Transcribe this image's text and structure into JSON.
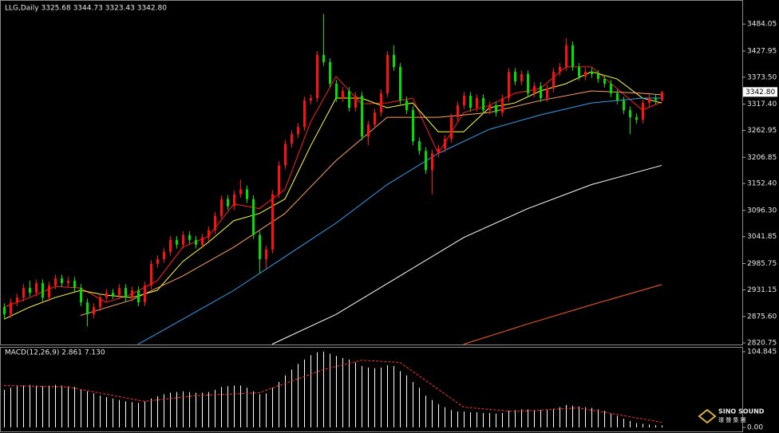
{
  "chart_data": [
    {
      "type": "candlestick",
      "title": "LLG,Daily  3325.68 3344.73 3323.43 3342.80",
      "up_color": "#ff1010",
      "down_color": "#00e000",
      "ylim": [
        2817.4,
        3532.5
      ],
      "yticks": [
        3484.05,
        3427.95,
        {
          "value": 3373.5,
          "label": "3373.50"
        },
        {
          "value": 3317.4,
          "label": "3317.40"
        },
        3262.95,
        3206.85,
        {
          "value": 3152.4,
          "label": "3152.40"
        },
        {
          "value": 3096.3,
          "label": "3096.30"
        },
        3041.85,
        2985.75,
        2931.15,
        {
          "value": 2875.6,
          "label": "2875.60"
        },
        2820.75
      ],
      "price_tag": {
        "value": 3342.8,
        "label": "3342.80"
      },
      "open": [
        2895,
        2880,
        2905,
        2915,
        2935,
        2925,
        2945,
        2915,
        2940,
        2955,
        2945,
        2950,
        2935,
        2905,
        2880,
        2895,
        2915,
        2925,
        2920,
        2935,
        2915,
        2930,
        2905,
        2940,
        2985,
        2995,
        3010,
        3035,
        3025,
        3045,
        3035,
        3025,
        3040,
        3055,
        3085,
        3120,
        3105,
        3130,
        3140,
        3120,
        3045,
        2995,
        3015,
        3130,
        3190,
        3235,
        3255,
        3270,
        3325,
        3330,
        3420,
        3405,
        3360,
        3330,
        3345,
        3310,
        3335,
        3250,
        3275,
        3300,
        3340,
        3420,
        3395,
        3325,
        3305,
        3240,
        3220,
        3180,
        3215,
        3225,
        3245,
        3290,
        3315,
        3335,
        3310,
        3330,
        3305,
        3315,
        3300,
        3330,
        3385,
        3365,
        3380,
        3340,
        3355,
        3330,
        3350,
        3385,
        3395,
        3440,
        3395,
        3375,
        3385,
        3380,
        3370,
        3360,
        3340,
        3325,
        3305,
        3290,
        3285,
        3320,
        3330,
        3325.68
      ],
      "high": [
        2903,
        2913,
        2923,
        2943,
        2950,
        2953,
        2953,
        2948,
        2963,
        2963,
        2958,
        2958,
        2943,
        2913,
        2903,
        2923,
        2933,
        2933,
        2943,
        2943,
        2938,
        2938,
        2948,
        2993,
        3003,
        3018,
        3043,
        3043,
        3053,
        3053,
        3043,
        3048,
        3063,
        3093,
        3128,
        3128,
        3138,
        3160,
        3148,
        3128,
        3053,
        3023,
        3138,
        3198,
        3243,
        3263,
        3278,
        3333,
        3338,
        3428,
        3505,
        3413,
        3368,
        3353,
        3353,
        3343,
        3343,
        3283,
        3308,
        3348,
        3428,
        3440,
        3403,
        3333,
        3313,
        3248,
        3228,
        3223,
        3233,
        3253,
        3298,
        3323,
        3343,
        3343,
        3338,
        3338,
        3323,
        3323,
        3338,
        3393,
        3393,
        3388,
        3388,
        3363,
        3363,
        3358,
        3393,
        3403,
        3455,
        3448,
        3403,
        3393,
        3393,
        3388,
        3378,
        3368,
        3348,
        3333,
        3313,
        3298,
        3328,
        3338,
        3338,
        3344.73
      ],
      "low": [
        2872,
        2872,
        2897,
        2907,
        2917,
        2917,
        2907,
        2907,
        2932,
        2937,
        2937,
        2927,
        2897,
        2855,
        2872,
        2887,
        2907,
        2912,
        2912,
        2907,
        2907,
        2897,
        2897,
        2932,
        2977,
        2987,
        3002,
        3017,
        3017,
        3027,
        3017,
        3017,
        3032,
        3047,
        3077,
        3097,
        3097,
        3122,
        3112,
        3037,
        2965,
        2975,
        3007,
        3122,
        3182,
        3227,
        3247,
        3262,
        3317,
        3322,
        3397,
        3352,
        3322,
        3322,
        3302,
        3302,
        3242,
        3232,
        3267,
        3292,
        3332,
        3387,
        3317,
        3297,
        3232,
        3212,
        3172,
        3130,
        3207,
        3217,
        3237,
        3282,
        3307,
        3302,
        3302,
        3297,
        3297,
        3292,
        3292,
        3322,
        3357,
        3357,
        3332,
        3332,
        3322,
        3322,
        3342,
        3377,
        3387,
        3387,
        3367,
        3367,
        3372,
        3362,
        3352,
        3332,
        3317,
        3297,
        3255,
        3277,
        3277,
        3312,
        3317,
        3323.43
      ],
      "close": [
        2880,
        2905,
        2915,
        2935,
        2925,
        2945,
        2915,
        2940,
        2955,
        2945,
        2950,
        2935,
        2905,
        2880,
        2895,
        2915,
        2925,
        2920,
        2935,
        2915,
        2930,
        2905,
        2940,
        2985,
        2995,
        3010,
        3035,
        3025,
        3045,
        3035,
        3025,
        3040,
        3055,
        3085,
        3120,
        3105,
        3130,
        3140,
        3120,
        3045,
        2995,
        3015,
        3130,
        3190,
        3235,
        3255,
        3270,
        3325,
        3330,
        3420,
        3405,
        3360,
        3330,
        3345,
        3310,
        3335,
        3250,
        3275,
        3300,
        3340,
        3420,
        3395,
        3325,
        3305,
        3240,
        3220,
        3180,
        3215,
        3225,
        3245,
        3290,
        3315,
        3335,
        3310,
        3330,
        3305,
        3315,
        3300,
        3330,
        3385,
        3365,
        3380,
        3340,
        3355,
        3330,
        3350,
        3385,
        3395,
        3440,
        3395,
        3375,
        3385,
        3380,
        3370,
        3360,
        3340,
        3325,
        3305,
        3290,
        3285,
        3320,
        3330,
        3325.68,
        3342.8
      ],
      "moving_averages": [
        {
          "color": "#ff2020",
          "x": [
            0,
            4,
            8,
            12,
            16,
            20,
            24,
            28,
            32,
            36,
            40,
            44,
            48,
            52,
            56,
            60,
            64,
            68,
            72,
            76,
            80,
            84,
            88,
            92,
            96,
            100,
            103
          ],
          "values": [
            2895,
            2915,
            2938,
            2935,
            2905,
            2922,
            2950,
            3020,
            3042,
            3110,
            3100,
            3140,
            3280,
            3375,
            3318,
            3320,
            3330,
            3215,
            3300,
            3315,
            3340,
            3350,
            3395,
            3395,
            3350,
            3305,
            3322
          ]
        },
        {
          "color": "#ffff40",
          "x": [
            0,
            4,
            8,
            12,
            16,
            20,
            24,
            28,
            32,
            36,
            40,
            44,
            48,
            52,
            56,
            60,
            64,
            68,
            72,
            76,
            80,
            84,
            88,
            92,
            96,
            100,
            103
          ],
          "values": [
            2870,
            2895,
            2915,
            2930,
            2920,
            2915,
            2930,
            2990,
            3030,
            3075,
            3090,
            3120,
            3230,
            3330,
            3330,
            3310,
            3320,
            3260,
            3260,
            3310,
            3320,
            3345,
            3360,
            3385,
            3370,
            3330,
            3320
          ]
        },
        {
          "color": "#ffa060",
          "x": [
            12,
            20,
            28,
            36,
            44,
            52,
            60,
            68,
            76,
            84,
            92,
            100,
            103
          ],
          "values": [
            2878,
            2910,
            2960,
            3020,
            3090,
            3200,
            3290,
            3290,
            3300,
            3325,
            3345,
            3340,
            3337
          ]
        },
        {
          "color": "#30a0f0",
          "x": [
            21,
            28,
            36,
            44,
            52,
            60,
            68,
            76,
            84,
            92,
            100,
            103
          ],
          "values": [
            2818,
            2870,
            2930,
            3000,
            3070,
            3150,
            3215,
            3265,
            3295,
            3320,
            3330,
            3330
          ]
        },
        {
          "color": "#ffffff",
          "x": [
            42,
            52,
            62,
            72,
            82,
            92,
            103
          ],
          "values": [
            2818,
            2880,
            2960,
            3040,
            3100,
            3150,
            3190
          ]
        },
        {
          "color": "#ff6020",
          "x": [
            72,
            82,
            92,
            103
          ],
          "values": [
            2818,
            2860,
            2900,
            2942
          ]
        }
      ]
    },
    {
      "type": "macd",
      "title": "MACD(12,26,9) 2.861 7.130",
      "ylim": [
        -4.4,
        110.4
      ],
      "yticks": [
        104.845,
        {
          "value": 0,
          "label": "0.00"
        }
      ],
      "histogram": {
        "color": "#ffffff",
        "values": [
          52,
          55,
          57,
          58,
          59,
          58,
          57,
          58,
          59,
          58,
          57,
          56,
          53,
          50,
          47,
          44,
          42,
          40,
          38,
          36,
          35,
          34,
          36,
          40,
          43,
          46,
          48,
          49,
          50,
          49,
          48,
          48,
          49,
          52,
          56,
          57,
          58,
          58,
          55,
          50,
          46,
          47,
          55,
          63,
          72,
          80,
          88,
          94,
          100,
          104,
          105,
          102,
          99,
          96,
          94,
          90,
          85,
          83,
          82,
          83,
          86,
          85,
          78,
          72,
          63,
          55,
          44,
          38,
          32,
          28,
          24,
          22,
          22,
          21,
          21,
          20,
          20,
          19,
          20,
          23,
          24,
          25,
          25,
          24,
          24,
          24,
          26,
          28,
          31,
          30,
          29,
          28,
          27,
          25,
          23,
          19,
          16,
          12,
          9,
          6,
          5,
          4,
          3,
          2.861
        ]
      },
      "signal": {
        "color": "#ff3030",
        "x": [
          0,
          10,
          22,
          30,
          40,
          50,
          56,
          62,
          72,
          80,
          90,
          96,
          103
        ],
        "values": [
          58,
          56,
          36,
          44,
          48,
          80,
          93,
          90,
          28,
          22,
          27,
          18,
          7.13
        ]
      }
    }
  ],
  "watermark": {
    "name": "SINO SOUND",
    "subtitle": "環 聲 集 團"
  }
}
